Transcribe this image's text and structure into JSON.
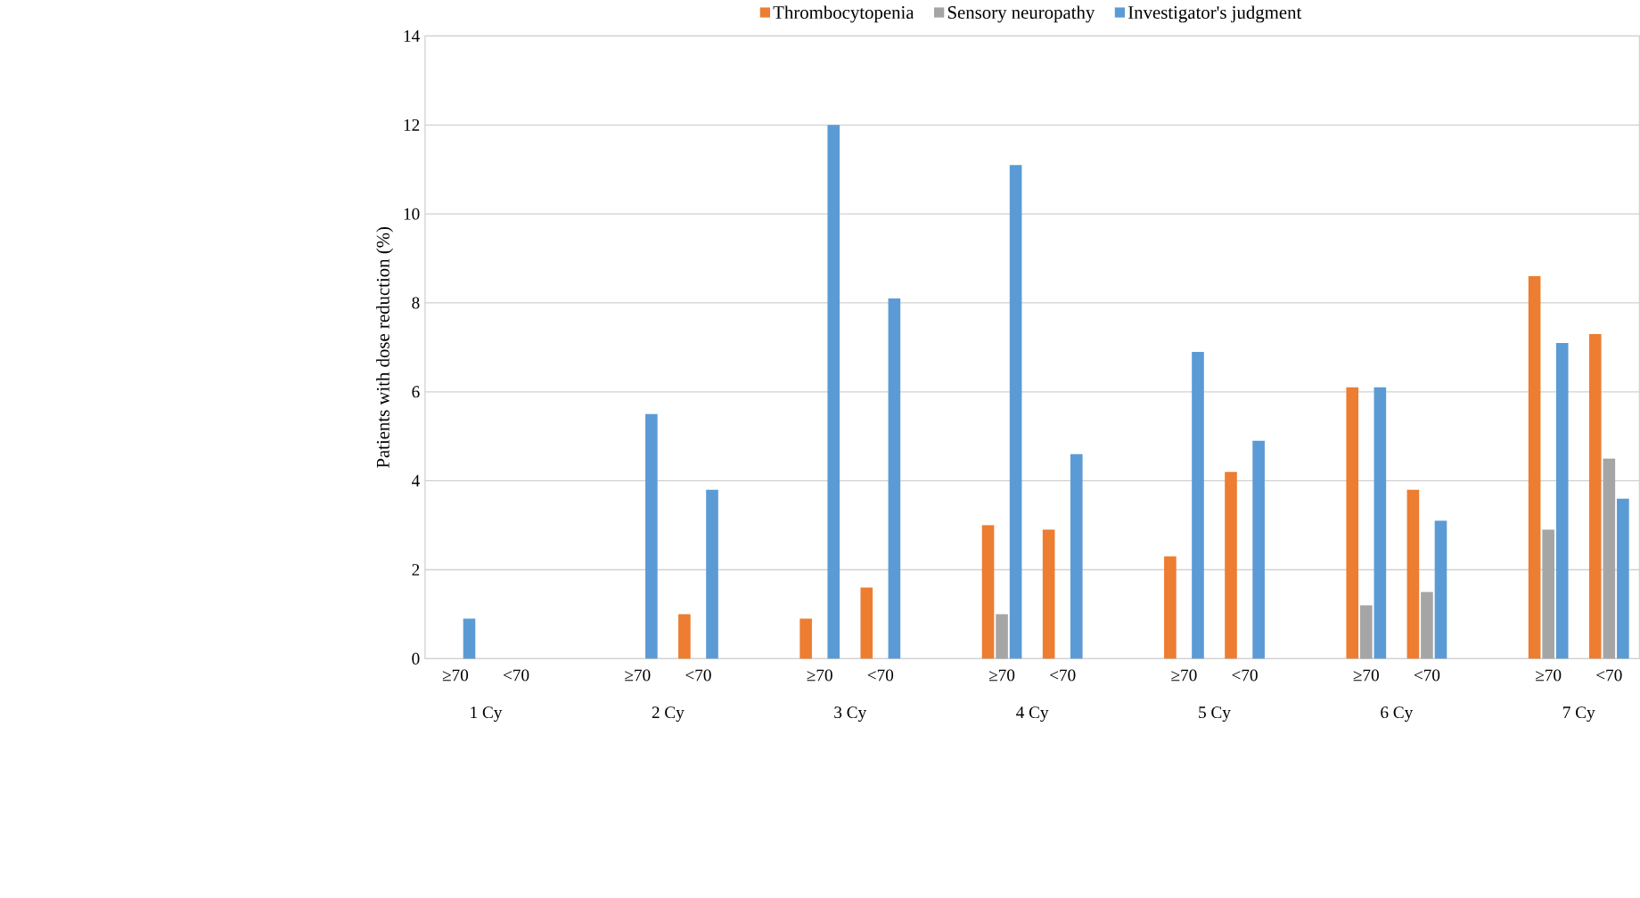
{
  "chart_data": {
    "type": "bar",
    "ylabel": "Patients with dose reduction (%)",
    "categories": [
      "≥70",
      "<70",
      null,
      "≥70",
      "<70",
      null,
      "≥70",
      "<70",
      null,
      "≥70",
      "<70",
      null,
      "≥70",
      "<70",
      null,
      "≥70",
      "<70",
      null,
      "≥70",
      "<70"
    ],
    "series": [
      {
        "name": "Thrombocytopenia",
        "color": "#ed7d31",
        "values": [
          null,
          null,
          null,
          null,
          1.0,
          null,
          0.9,
          1.6,
          null,
          3.0,
          2.9,
          null,
          2.3,
          4.2,
          null,
          6.1,
          3.8,
          null,
          8.6,
          7.3
        ]
      },
      {
        "name": "Sensory neuropathy",
        "color": "#a5a5a5",
        "values": [
          null,
          null,
          null,
          null,
          null,
          null,
          null,
          null,
          null,
          1.0,
          null,
          null,
          null,
          null,
          null,
          1.2,
          1.5,
          null,
          2.9,
          4.5
        ]
      },
      {
        "name": "Investigator's judgment",
        "color": "#5b9bd5",
        "values": [
          0.9,
          null,
          null,
          5.5,
          3.8,
          null,
          12,
          8.1,
          null,
          11.1,
          4.6,
          null,
          6.9,
          4.9,
          null,
          6.1,
          3.1,
          null,
          7.1,
          3.6
        ]
      }
    ],
    "annotations": [
      "1 Cy",
      "2 Cy",
      "3 Cy",
      "4 Cy",
      "5 Cy",
      "6 Cy",
      "7 Cy"
    ],
    "ylim": [
      0,
      14
    ],
    "yticks": [
      0,
      2,
      4,
      6,
      8,
      10,
      12,
      14
    ],
    "grid": "y",
    "legend": "top"
  }
}
